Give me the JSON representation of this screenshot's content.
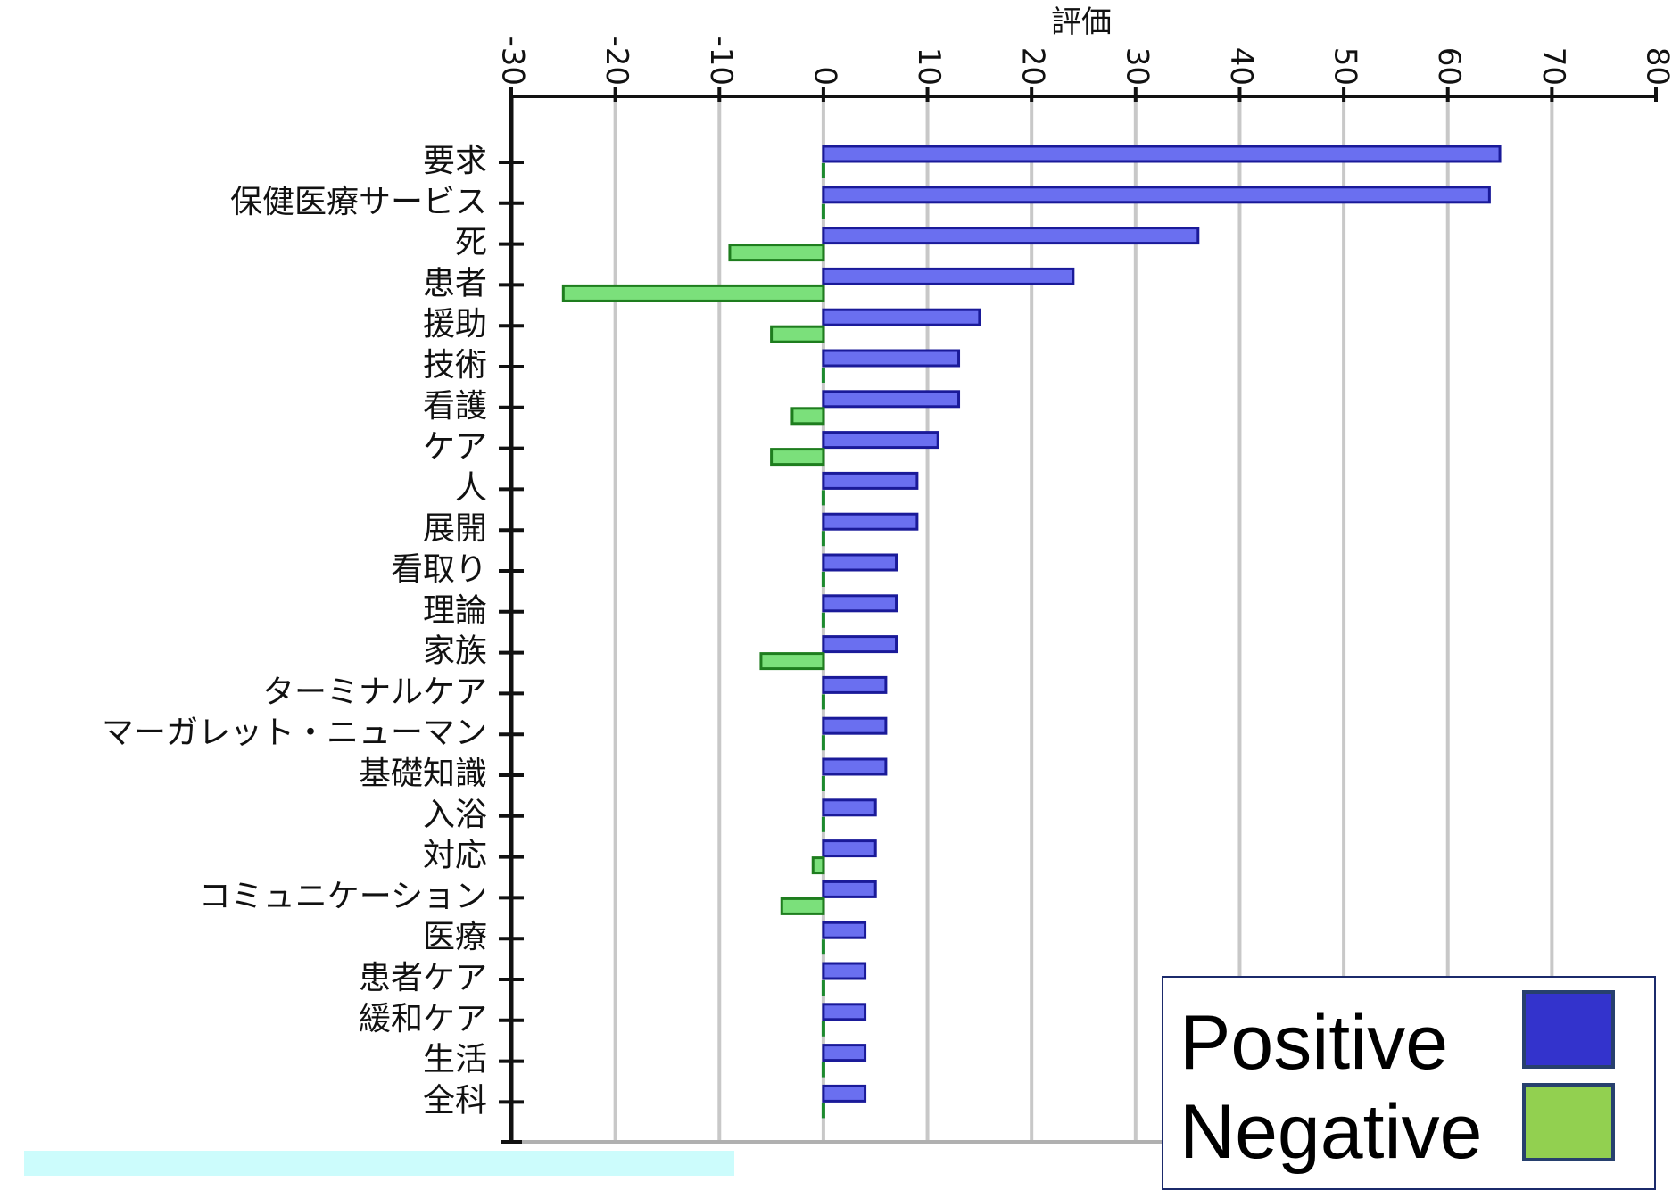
{
  "chart_data": {
    "type": "bar",
    "orientation": "horizontal",
    "title": "評価",
    "xlim": [
      -30,
      80
    ],
    "xticks": [
      "-30",
      "-20",
      "-10",
      "0",
      "10",
      "20",
      "30",
      "40",
      "50",
      "60",
      "70",
      "80"
    ],
    "grid": true,
    "legend_position": "bottom-right",
    "categories": [
      "要求",
      "保健医療サービス",
      "死",
      "患者",
      "援助",
      "技術",
      "看護",
      "ケア",
      "人",
      "展開",
      "看取り",
      "理論",
      "家族",
      "ターミナルケア",
      "マーガレット・ニューマン",
      "基礎知識",
      "入浴",
      "対応",
      "コミュニケーション",
      "医療",
      "患者ケア",
      "緩和ケア",
      "生活",
      "全科"
    ],
    "series": [
      {
        "name": "Positive",
        "color": "#3333cc",
        "values": [
          65,
          64,
          36,
          24,
          15,
          13,
          13,
          11,
          9,
          9,
          7,
          7,
          7,
          6,
          6,
          6,
          5,
          5,
          5,
          4,
          4,
          4,
          4,
          4
        ]
      },
      {
        "name": "Negative",
        "color": "#92d050",
        "values": [
          0,
          0,
          -9,
          -25,
          -5,
          0,
          -3,
          -5,
          0,
          0,
          0,
          0,
          -6,
          0,
          0,
          0,
          0,
          -1,
          -4,
          0,
          0,
          0,
          0,
          0
        ]
      }
    ]
  }
}
